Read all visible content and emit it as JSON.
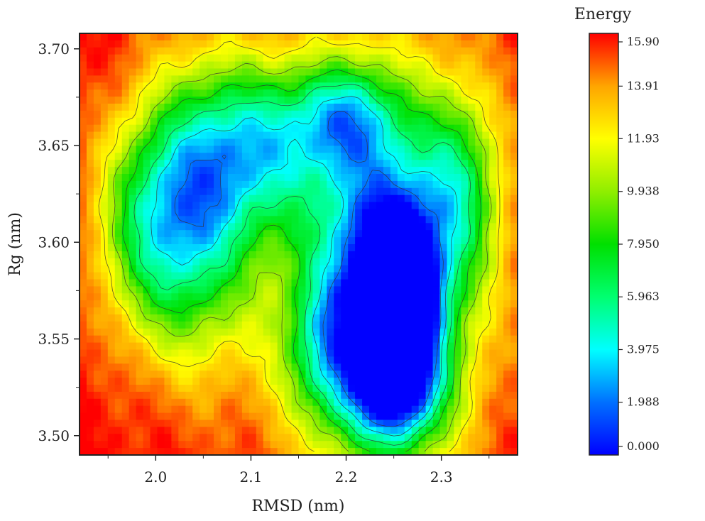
{
  "chart_data": {
    "type": "heatmap",
    "title": "",
    "xlabel": "RMSD (nm)",
    "ylabel": "Rg (nm)",
    "xlim": [
      1.92,
      2.38
    ],
    "ylim": [
      3.49,
      3.708
    ],
    "x_ticks": [
      {
        "value": 2.0,
        "label": "2.0"
      },
      {
        "value": 2.1,
        "label": "2.1"
      },
      {
        "value": 2.2,
        "label": "2.2"
      },
      {
        "value": 2.3,
        "label": "2.3"
      }
    ],
    "y_ticks": [
      {
        "value": 3.5,
        "label": "3.50"
      },
      {
        "value": 3.55,
        "label": "3.55"
      },
      {
        "value": 3.6,
        "label": "3.60"
      },
      {
        "value": 3.65,
        "label": "3.65"
      },
      {
        "value": 3.7,
        "label": "3.70"
      }
    ],
    "colorbar": {
      "title": "Energy",
      "min": 0.0,
      "max": 15.9,
      "ticks": [
        {
          "value": 15.9,
          "label": "15.90"
        },
        {
          "value": 13.91,
          "label": "13.91"
        },
        {
          "value": 11.93,
          "label": "11.93"
        },
        {
          "value": 9.938,
          "label": "9.938"
        },
        {
          "value": 7.95,
          "label": "7.950"
        },
        {
          "value": 5.963,
          "label": "5.963"
        },
        {
          "value": 3.975,
          "label": "3.975"
        },
        {
          "value": 1.988,
          "label": "1.988"
        },
        {
          "value": 0.0,
          "label": "0.000"
        }
      ],
      "colors": [
        "#0000ff",
        "#0070ff",
        "#00ffff",
        "#00ff70",
        "#00e000",
        "#90ee00",
        "#ffff00",
        "#ffa500",
        "#ff0000"
      ]
    },
    "surface_model": {
      "default_energy": 15.9,
      "basins": [
        {
          "x": 2.255,
          "y": 3.565,
          "depth": 15.5,
          "sx": 0.026,
          "sy": 0.03
        },
        {
          "x": 2.24,
          "y": 3.58,
          "depth": 11.5,
          "sx": 0.052,
          "sy": 0.052
        },
        {
          "x": 2.23,
          "y": 3.59,
          "depth": 5.0,
          "sx": 0.085,
          "sy": 0.085
        },
        {
          "x": 2.045,
          "y": 3.615,
          "depth": 9.5,
          "sx": 0.045,
          "sy": 0.05
        },
        {
          "x": 1.99,
          "y": 3.61,
          "depth": 6.5,
          "sx": 0.04,
          "sy": 0.04
        },
        {
          "x": 2.11,
          "y": 3.65,
          "depth": 8.0,
          "sx": 0.05,
          "sy": 0.03
        },
        {
          "x": 2.2,
          "y": 3.665,
          "depth": 7.0,
          "sx": 0.04,
          "sy": 0.02
        },
        {
          "x": 2.32,
          "y": 3.63,
          "depth": 6.0,
          "sx": 0.03,
          "sy": 0.035
        },
        {
          "x": 2.25,
          "y": 3.52,
          "depth": 6.5,
          "sx": 0.04,
          "sy": 0.02
        },
        {
          "x": 2.175,
          "y": 3.545,
          "depth": 5.0,
          "sx": 0.03,
          "sy": 0.025
        }
      ],
      "contour_levels": [
        2,
        4,
        6,
        8,
        10,
        12
      ]
    }
  }
}
